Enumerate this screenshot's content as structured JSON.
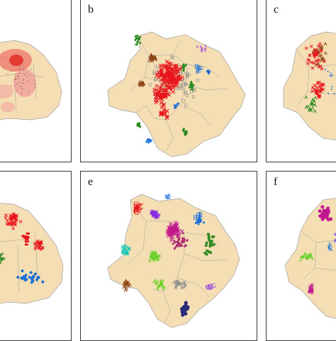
{
  "figure": {
    "panels": [
      {
        "id": "a",
        "label": ""
      },
      {
        "id": "b",
        "label": "b"
      },
      {
        "id": "c",
        "label": "c"
      },
      {
        "id": "d",
        "label": ""
      },
      {
        "id": "e",
        "label": "e"
      },
      {
        "id": "f",
        "label": "f"
      }
    ],
    "colors": {
      "land": "#f5deb3",
      "border": "#9e9e9e",
      "red": "#e8141b",
      "green": "#2e8b22",
      "blue": "#1a6fd6",
      "brown": "#8b4513",
      "purple": "#8a2be2",
      "navy": "#2c2a7a",
      "magenta": "#c0188f",
      "cyan": "#19c9b8",
      "lime": "#6ad12a",
      "pink": "#e8526c"
    },
    "symbols": {
      "b": [
        "D",
        "E",
        "X",
        "x"
      ],
      "e": [
        "C",
        "E",
        "G",
        "K",
        "Y"
      ],
      "f": [
        "K"
      ]
    }
  }
}
